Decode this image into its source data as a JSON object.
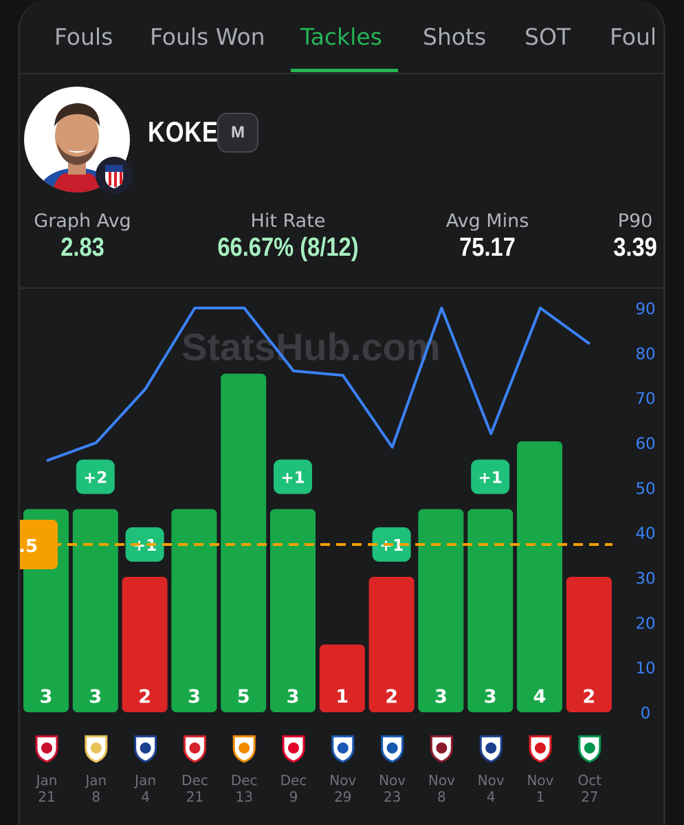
{
  "tabs": [
    "Fouls",
    "Fouls Won",
    "Tackles",
    "Shots",
    "SOT",
    "Foul"
  ],
  "active_tab": "Tackles",
  "player": {
    "name": "KOKE",
    "position": "M"
  },
  "stats": [
    {
      "label": "Graph Avg",
      "value": "2.83",
      "color": "#a6f0c0"
    },
    {
      "label": "Hit Rate",
      "value": "66.67% (8/12)",
      "color": "#a6f0c0"
    },
    {
      "label": "Avg Mins",
      "value": "75.17",
      "color": "#ffffff"
    },
    {
      "label": "P90",
      "value": "3.39",
      "color": "#ffffff"
    }
  ],
  "watermark": "StatsHub.com",
  "line_label": ".5",
  "colors": {
    "hit": "#18a84a",
    "miss": "#dc2626",
    "line": "#3b82f6",
    "threshold": "#f6a000",
    "pill": "#1fc07a"
  },
  "chart_data": {
    "type": "bar",
    "categories": [
      "Jan 21",
      "Jan 8",
      "Jan 4",
      "Dec 21",
      "Dec 13",
      "Dec 9",
      "Nov 29",
      "Nov 23",
      "Nov 8",
      "Nov 4",
      "Nov 1",
      "Oct 27"
    ],
    "dates": [
      [
        "Jan",
        "21"
      ],
      [
        "Jan",
        "8"
      ],
      [
        "Jan",
        "4"
      ],
      [
        "Dec",
        "21"
      ],
      [
        "Dec",
        "13"
      ],
      [
        "Dec",
        "9"
      ],
      [
        "Nov",
        "29"
      ],
      [
        "Nov",
        "23"
      ],
      [
        "Nov",
        "8"
      ],
      [
        "Nov",
        "4"
      ],
      [
        "Nov",
        "1"
      ],
      [
        "Oct",
        "27"
      ]
    ],
    "opponent_icons": [
      "galatasaray-crest-icon",
      "real-madrid-crest-icon",
      "real-sociedad-crest-icon",
      "girona-crest-icon",
      "valencia-crest-icon",
      "psv-crest-icon",
      "oviedo-crest-icon",
      "getafe-crest-icon",
      "levante-crest-icon",
      "union-sg-crest-icon",
      "sevilla-crest-icon",
      "betis-crest-icon"
    ],
    "opponent_colors": [
      "#c8102e",
      "#e8c35a",
      "#1b3f8f",
      "#d6202a",
      "#f28c00",
      "#e4002b",
      "#1b57b5",
      "#1458b0",
      "#8b1a2b",
      "#1b3f8f",
      "#d71920",
      "#00954c"
    ],
    "values": [
      3,
      3,
      2,
      3,
      5,
      3,
      1,
      2,
      3,
      3,
      4,
      2
    ],
    "results": [
      "hit",
      "hit",
      "miss",
      "hit",
      "hit",
      "hit",
      "miss",
      "miss",
      "hit",
      "hit",
      "hit",
      "miss"
    ],
    "bonus_labels": [
      "",
      "+2",
      "+1",
      "",
      "",
      "+1",
      "",
      "+1",
      "",
      "+1",
      "",
      ""
    ],
    "minutes": [
      56,
      60,
      72,
      90,
      90,
      76,
      75,
      59,
      90,
      62,
      90,
      82
    ],
    "line_threshold": 2.5,
    "bar_ylim": [
      0,
      6
    ],
    "minutes_ylim": [
      0,
      90
    ],
    "minutes_ticks": [
      0,
      10,
      20,
      30,
      40,
      50,
      60,
      70,
      80,
      90
    ]
  }
}
